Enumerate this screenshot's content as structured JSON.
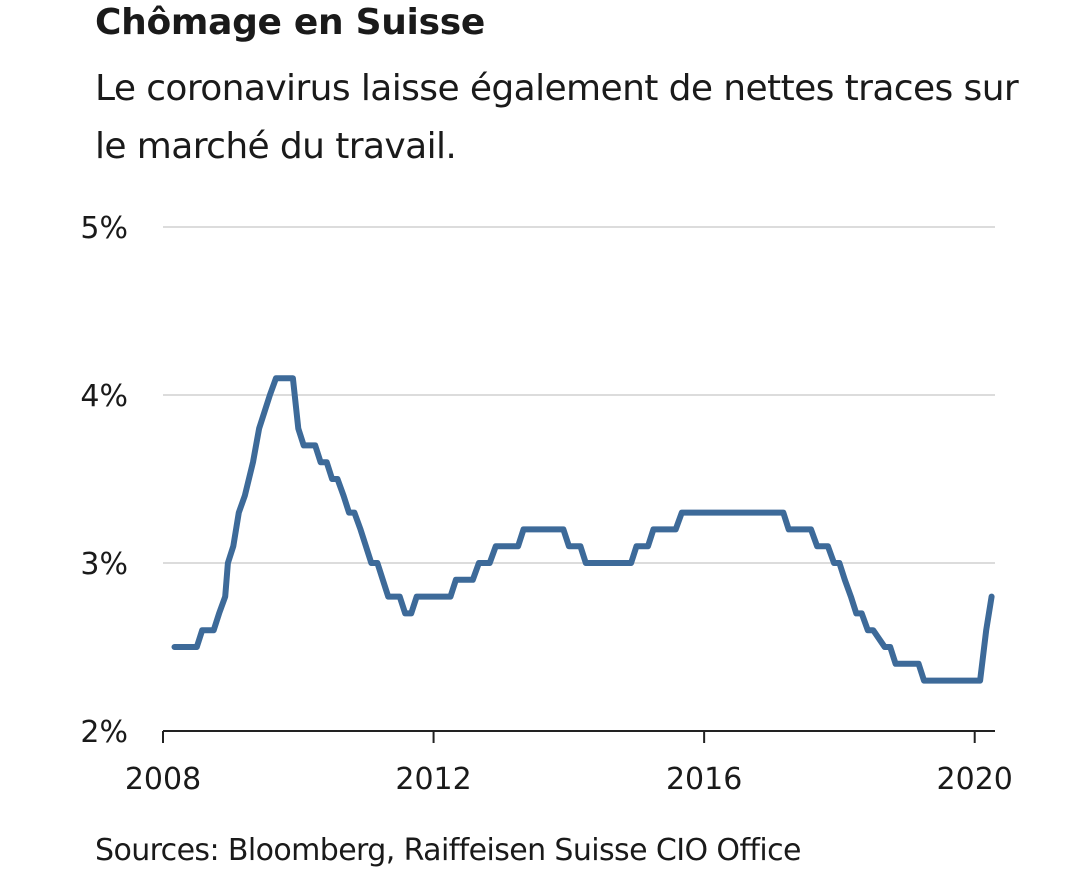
{
  "title": "Chômage en Suisse",
  "subtitle": "Le coronavirus laisse également de nettes traces sur le marché du travail.",
  "source": "Sources: Bloomberg, Raiffeisen Suisse CIO Office",
  "chart_data": {
    "type": "line",
    "title": "Chômage en Suisse",
    "subtitle": "Le coronavirus laisse également de nettes traces sur le marché du travail.",
    "xlabel": "",
    "ylabel": "",
    "xlim": [
      2008,
      2020.3
    ],
    "ylim": [
      2,
      5
    ],
    "grid": true,
    "line_color": "#3d6a99",
    "x_ticks": [
      {
        "value": 2008,
        "label": "2008"
      },
      {
        "value": 2012,
        "label": "2012"
      },
      {
        "value": 2016,
        "label": "2016"
      },
      {
        "value": 2020,
        "label": "2020"
      }
    ],
    "y_ticks": [
      {
        "value": 2,
        "label": "2%"
      },
      {
        "value": 3,
        "label": "3%"
      },
      {
        "value": 4,
        "label": "4%"
      },
      {
        "value": 5,
        "label": "5%"
      }
    ],
    "series": [
      {
        "x": [
          2008.17,
          2008.5,
          2008.58,
          2008.75,
          2008.83,
          2008.92,
          2008.96,
          2009.04,
          2009.12,
          2009.21,
          2009.33,
          2009.42,
          2009.5,
          2009.58,
          2009.67,
          2009.75,
          2009.83,
          2009.92,
          2010.0,
          2010.08,
          2010.17,
          2010.25,
          2010.33,
          2010.42,
          2010.5,
          2010.58,
          2010.67,
          2010.75,
          2010.83,
          2010.92,
          2011.0,
          2011.08,
          2011.17,
          2011.25,
          2011.33,
          2011.42,
          2011.5,
          2011.58,
          2011.67,
          2011.75,
          2012.25,
          2012.33,
          2012.58,
          2012.67,
          2012.83,
          2012.92,
          2013.17,
          2013.25,
          2013.33,
          2013.42,
          2013.92,
          2014.0,
          2014.17,
          2014.25,
          2014.92,
          2015.0,
          2015.17,
          2015.25,
          2015.58,
          2015.67,
          2017.17,
          2017.25,
          2017.58,
          2017.67,
          2017.83,
          2017.92,
          2018.0,
          2018.08,
          2018.17,
          2018.25,
          2018.33,
          2018.42,
          2018.5,
          2018.67,
          2018.75,
          2018.83,
          2018.92,
          2019.17,
          2019.25,
          2020.08,
          2020.17,
          2020.25
        ],
        "y": [
          2.5,
          2.5,
          2.6,
          2.6,
          2.7,
          2.8,
          3.0,
          3.1,
          3.3,
          3.4,
          3.6,
          3.8,
          3.9,
          4.0,
          4.1,
          4.1,
          4.1,
          4.1,
          3.8,
          3.7,
          3.7,
          3.7,
          3.6,
          3.6,
          3.5,
          3.5,
          3.4,
          3.3,
          3.3,
          3.2,
          3.1,
          3.0,
          3.0,
          2.9,
          2.8,
          2.8,
          2.8,
          2.7,
          2.7,
          2.8,
          2.8,
          2.9,
          2.9,
          3.0,
          3.0,
          3.1,
          3.1,
          3.1,
          3.2,
          3.2,
          3.2,
          3.1,
          3.1,
          3.0,
          3.0,
          3.1,
          3.1,
          3.2,
          3.2,
          3.3,
          3.3,
          3.2,
          3.2,
          3.1,
          3.1,
          3.0,
          3.0,
          2.9,
          2.8,
          2.7,
          2.7,
          2.6,
          2.6,
          2.5,
          2.5,
          2.4,
          2.4,
          2.4,
          2.3,
          2.3,
          2.6,
          2.8
        ]
      }
    ]
  }
}
